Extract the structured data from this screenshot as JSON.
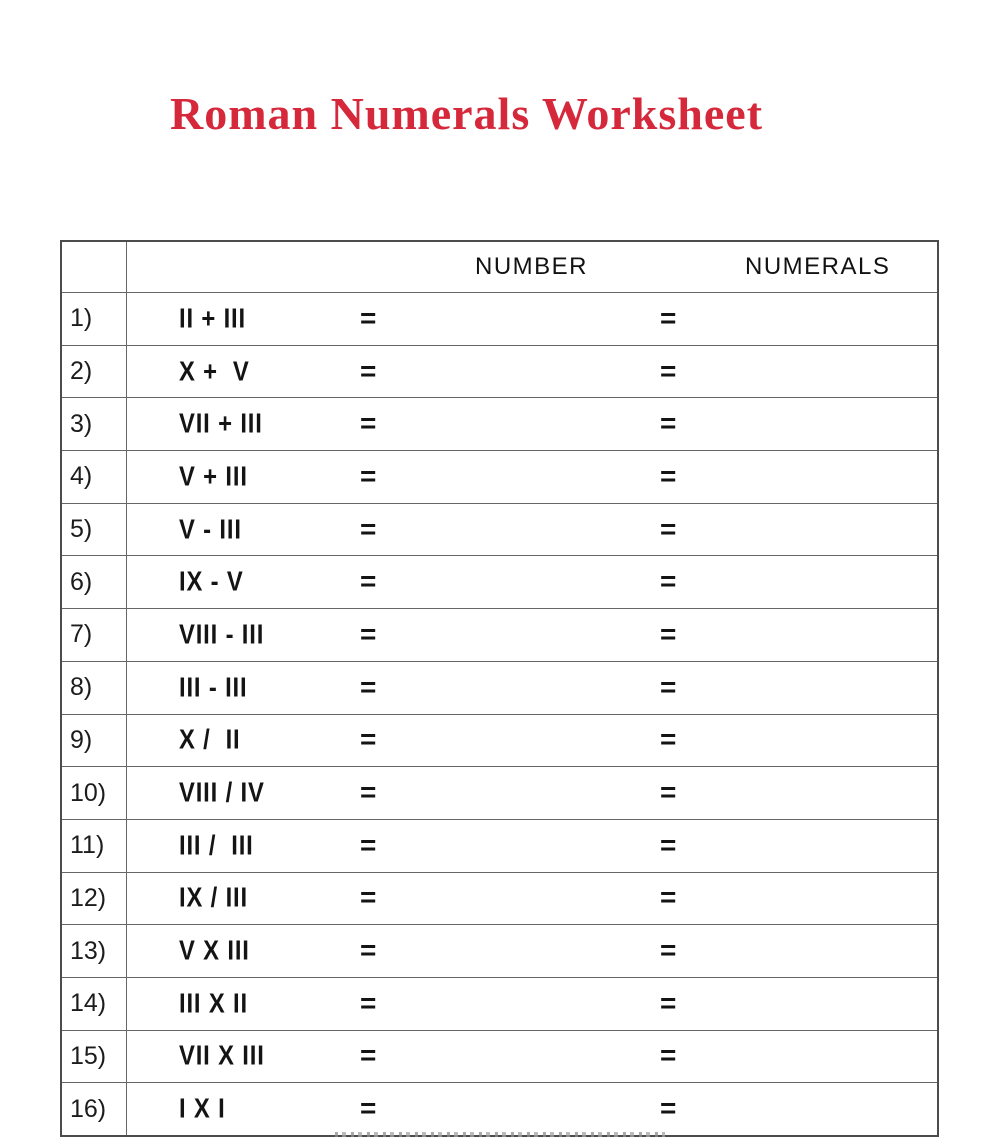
{
  "page": {
    "title": "Roman Numerals Worksheet",
    "title_color": "#d5283a"
  },
  "table": {
    "headers": {
      "number": "NUMBER",
      "numerals": "NUMERALS"
    },
    "equals_sign": "=",
    "rows": [
      {
        "num": "1)",
        "expr": "II + III"
      },
      {
        "num": "2)",
        "expr": "X +  V"
      },
      {
        "num": "3)",
        "expr": "VII + III"
      },
      {
        "num": "4)",
        "expr": "V + III"
      },
      {
        "num": "5)",
        "expr": "V - III"
      },
      {
        "num": "6)",
        "expr": "IX - V"
      },
      {
        "num": "7)",
        "expr": "VIII - III"
      },
      {
        "num": "8)",
        "expr": "III - III"
      },
      {
        "num": "9)",
        "expr": "X /  II"
      },
      {
        "num": "10)",
        "expr": "VIII / IV"
      },
      {
        "num": "11)",
        "expr": "III /  III"
      },
      {
        "num": "12)",
        "expr": "IX / III"
      },
      {
        "num": "13)",
        "expr": "V X III"
      },
      {
        "num": "14)",
        "expr": "III X II"
      },
      {
        "num": "15)",
        "expr": "VII X III"
      },
      {
        "num": "16)",
        "expr": "I X I"
      }
    ]
  }
}
